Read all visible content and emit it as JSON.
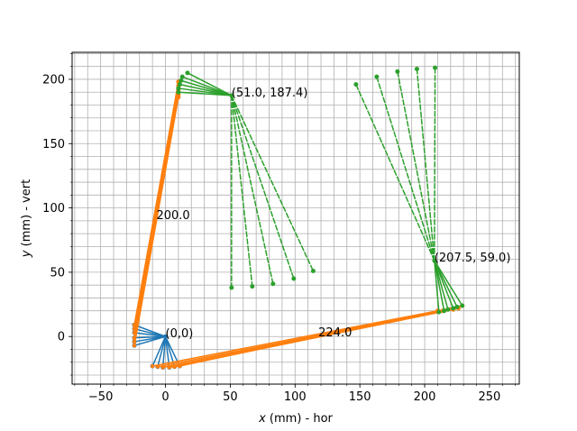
{
  "chart_data": {
    "type": "line",
    "title": "",
    "xlabel": "x (mm) - hor",
    "xlabel_var": "x",
    "xlabel_rest": " (mm) - hor",
    "ylabel": "y (mm) - vert",
    "ylabel_var": "y",
    "ylabel_rest": " (mm) - vert",
    "xlim": [
      -72,
      273
    ],
    "ylim": [
      -37,
      221
    ],
    "xticks": [
      -50,
      0,
      50,
      100,
      150,
      200,
      250
    ],
    "xtick_labels": [
      "−50",
      "0",
      "50",
      "100",
      "150",
      "200",
      "250"
    ],
    "yticks": [
      0,
      50,
      100,
      150,
      200
    ],
    "ytick_labels": [
      "0",
      "50",
      "100",
      "150",
      "200"
    ],
    "grid": true,
    "minor_grid_step": 10,
    "colors": {
      "blue": "#1f77b4",
      "orange": "#ff7f0e",
      "green": "#2ca02c",
      "grid": "#b0b0b0"
    },
    "series": [
      {
        "color": "blue",
        "style": "solid",
        "segments": [
          [
            [
              0,
              0
            ],
            [
              -24,
              9
            ]
          ],
          [
            [
              0,
              0
            ],
            [
              -24,
              6
            ]
          ],
          [
            [
              0,
              0
            ],
            [
              -24,
              3
            ]
          ],
          [
            [
              0,
              0
            ],
            [
              -24,
              -1
            ]
          ],
          [
            [
              0,
              0
            ],
            [
              -24,
              -4
            ]
          ],
          [
            [
              0,
              0
            ],
            [
              -24,
              -7
            ]
          ],
          [
            [
              0,
              0
            ],
            [
              -10,
              -23
            ]
          ],
          [
            [
              0,
              0
            ],
            [
              -6,
              -23.5
            ]
          ],
          [
            [
              0,
              0
            ],
            [
              -2,
              -24
            ]
          ],
          [
            [
              0,
              0
            ],
            [
              3,
              -24
            ]
          ],
          [
            [
              0,
              0
            ],
            [
              7,
              -23.5
            ]
          ],
          [
            [
              0,
              0
            ],
            [
              11,
              -23
            ]
          ]
        ]
      },
      {
        "color": "orange",
        "style": "solid",
        "segments": [
          [
            [
              -24,
              9
            ],
            [
              10,
              198
            ]
          ],
          [
            [
              -24,
              6
            ],
            [
              10,
              195
            ]
          ],
          [
            [
              -24,
              3
            ],
            [
              10,
              192
            ]
          ],
          [
            [
              -24,
              -1
            ],
            [
              10,
              190
            ]
          ],
          [
            [
              -24,
              -4
            ],
            [
              10,
              188
            ]
          ],
          [
            [
              -24,
              -7
            ],
            [
              10,
              186
            ]
          ],
          [
            [
              -10,
              -23
            ],
            [
              210,
              20
            ]
          ],
          [
            [
              -6,
              -23.5
            ],
            [
              214,
              20
            ]
          ],
          [
            [
              -2,
              -24
            ],
            [
              218,
              21
            ]
          ],
          [
            [
              3,
              -24
            ],
            [
              222,
              21
            ]
          ],
          [
            [
              7,
              -23.5
            ],
            [
              226,
              22
            ]
          ],
          [
            [
              11,
              -23
            ],
            [
              229,
              24
            ]
          ]
        ]
      },
      {
        "color": "green",
        "style": "solid",
        "segments": [
          [
            [
              51,
              187.4
            ],
            [
              17,
              205
            ]
          ],
          [
            [
              51,
              187.4
            ],
            [
              13,
              202
            ]
          ],
          [
            [
              51,
              187.4
            ],
            [
              12,
              199
            ]
          ],
          [
            [
              51,
              187.4
            ],
            [
              11,
              196
            ]
          ],
          [
            [
              51,
              187.4
            ],
            [
              10,
              193
            ]
          ],
          [
            [
              51,
              187.4
            ],
            [
              10,
              190
            ]
          ],
          [
            [
              207.5,
              59
            ],
            [
              211,
              19
            ]
          ],
          [
            [
              207.5,
              59
            ],
            [
              215,
              20
            ]
          ],
          [
            [
              207.5,
              59
            ],
            [
              218,
              21
            ]
          ],
          [
            [
              207.5,
              59
            ],
            [
              222,
              22
            ]
          ],
          [
            [
              207.5,
              59
            ],
            [
              225,
              23
            ]
          ],
          [
            [
              207.5,
              59
            ],
            [
              229,
              24
            ]
          ]
        ]
      },
      {
        "color": "green",
        "style": "dashed",
        "segments": [
          [
            [
              51,
              187.4
            ],
            [
              51,
              38
            ]
          ],
          [
            [
              51,
              187.4
            ],
            [
              67,
              39
            ]
          ],
          [
            [
              51,
              187.4
            ],
            [
              83,
              41
            ]
          ],
          [
            [
              51,
              187.4
            ],
            [
              99,
              45
            ]
          ],
          [
            [
              51,
              187.4
            ],
            [
              114,
              51
            ]
          ],
          [
            [
              207.5,
              59
            ],
            [
              147,
              196
            ]
          ],
          [
            [
              207.5,
              59
            ],
            [
              163,
              202
            ]
          ],
          [
            [
              207.5,
              59
            ],
            [
              179,
              206
            ]
          ],
          [
            [
              207.5,
              59
            ],
            [
              194,
              208
            ]
          ],
          [
            [
              207.5,
              59
            ],
            [
              208,
              209
            ]
          ]
        ]
      }
    ],
    "annotations": [
      {
        "text": "(0,0)",
        "x": 0,
        "y": 0
      },
      {
        "text": "(51.0, 187.4)",
        "x": 51,
        "y": 187.4
      },
      {
        "text": "(207.5, 59.0)",
        "x": 207.5,
        "y": 59
      },
      {
        "text": "200.0",
        "x": -7,
        "y": 92
      },
      {
        "text": "224.0",
        "x": 118,
        "y": 1
      }
    ]
  }
}
